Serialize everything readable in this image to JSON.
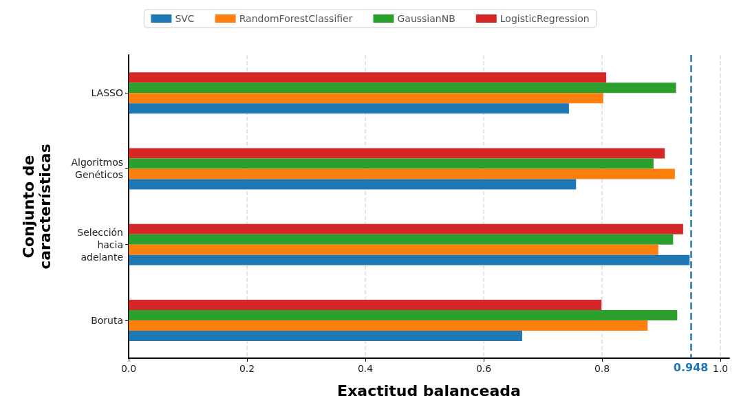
{
  "chart_data": {
    "type": "bar",
    "orientation": "horizontal",
    "xlabel": "Exactitud balanceada",
    "ylabel": "Conjunto de\ncaracterísticas",
    "categories": [
      "LASSO",
      "Algoritmos\nGenéticos",
      "Selección\nhacia\nadelante",
      "Boruta"
    ],
    "series": [
      {
        "name": "SVC",
        "color": "#1f77b4",
        "values": [
          0.744,
          0.756,
          0.948,
          0.665
        ]
      },
      {
        "name": "RandomForestClassifier",
        "color": "#ff7f0e",
        "values": [
          0.802,
          0.923,
          0.895,
          0.877
        ]
      },
      {
        "name": "GaussianNB",
        "color": "#2ca02c",
        "values": [
          0.925,
          0.887,
          0.92,
          0.927
        ]
      },
      {
        "name": "LogisticRegression",
        "color": "#d62728",
        "values": [
          0.807,
          0.906,
          0.937,
          0.799
        ]
      }
    ],
    "xlim": [
      0,
      1.015
    ],
    "xticks": [
      {
        "value": 0,
        "label": "0.0"
      },
      {
        "value": 0.2,
        "label": "0.2"
      },
      {
        "value": 0.4,
        "label": "0.4"
      },
      {
        "value": 0.6,
        "label": "0.6"
      },
      {
        "value": 0.8,
        "label": "0.8"
      },
      {
        "value": 1,
        "label": "1.0"
      }
    ],
    "ref_lines": [
      {
        "axis": "x",
        "value": 0.948,
        "label": "0.948",
        "color": "#1f77b4",
        "line_style": "dashed"
      }
    ],
    "grid": "x",
    "legend": "top"
  }
}
